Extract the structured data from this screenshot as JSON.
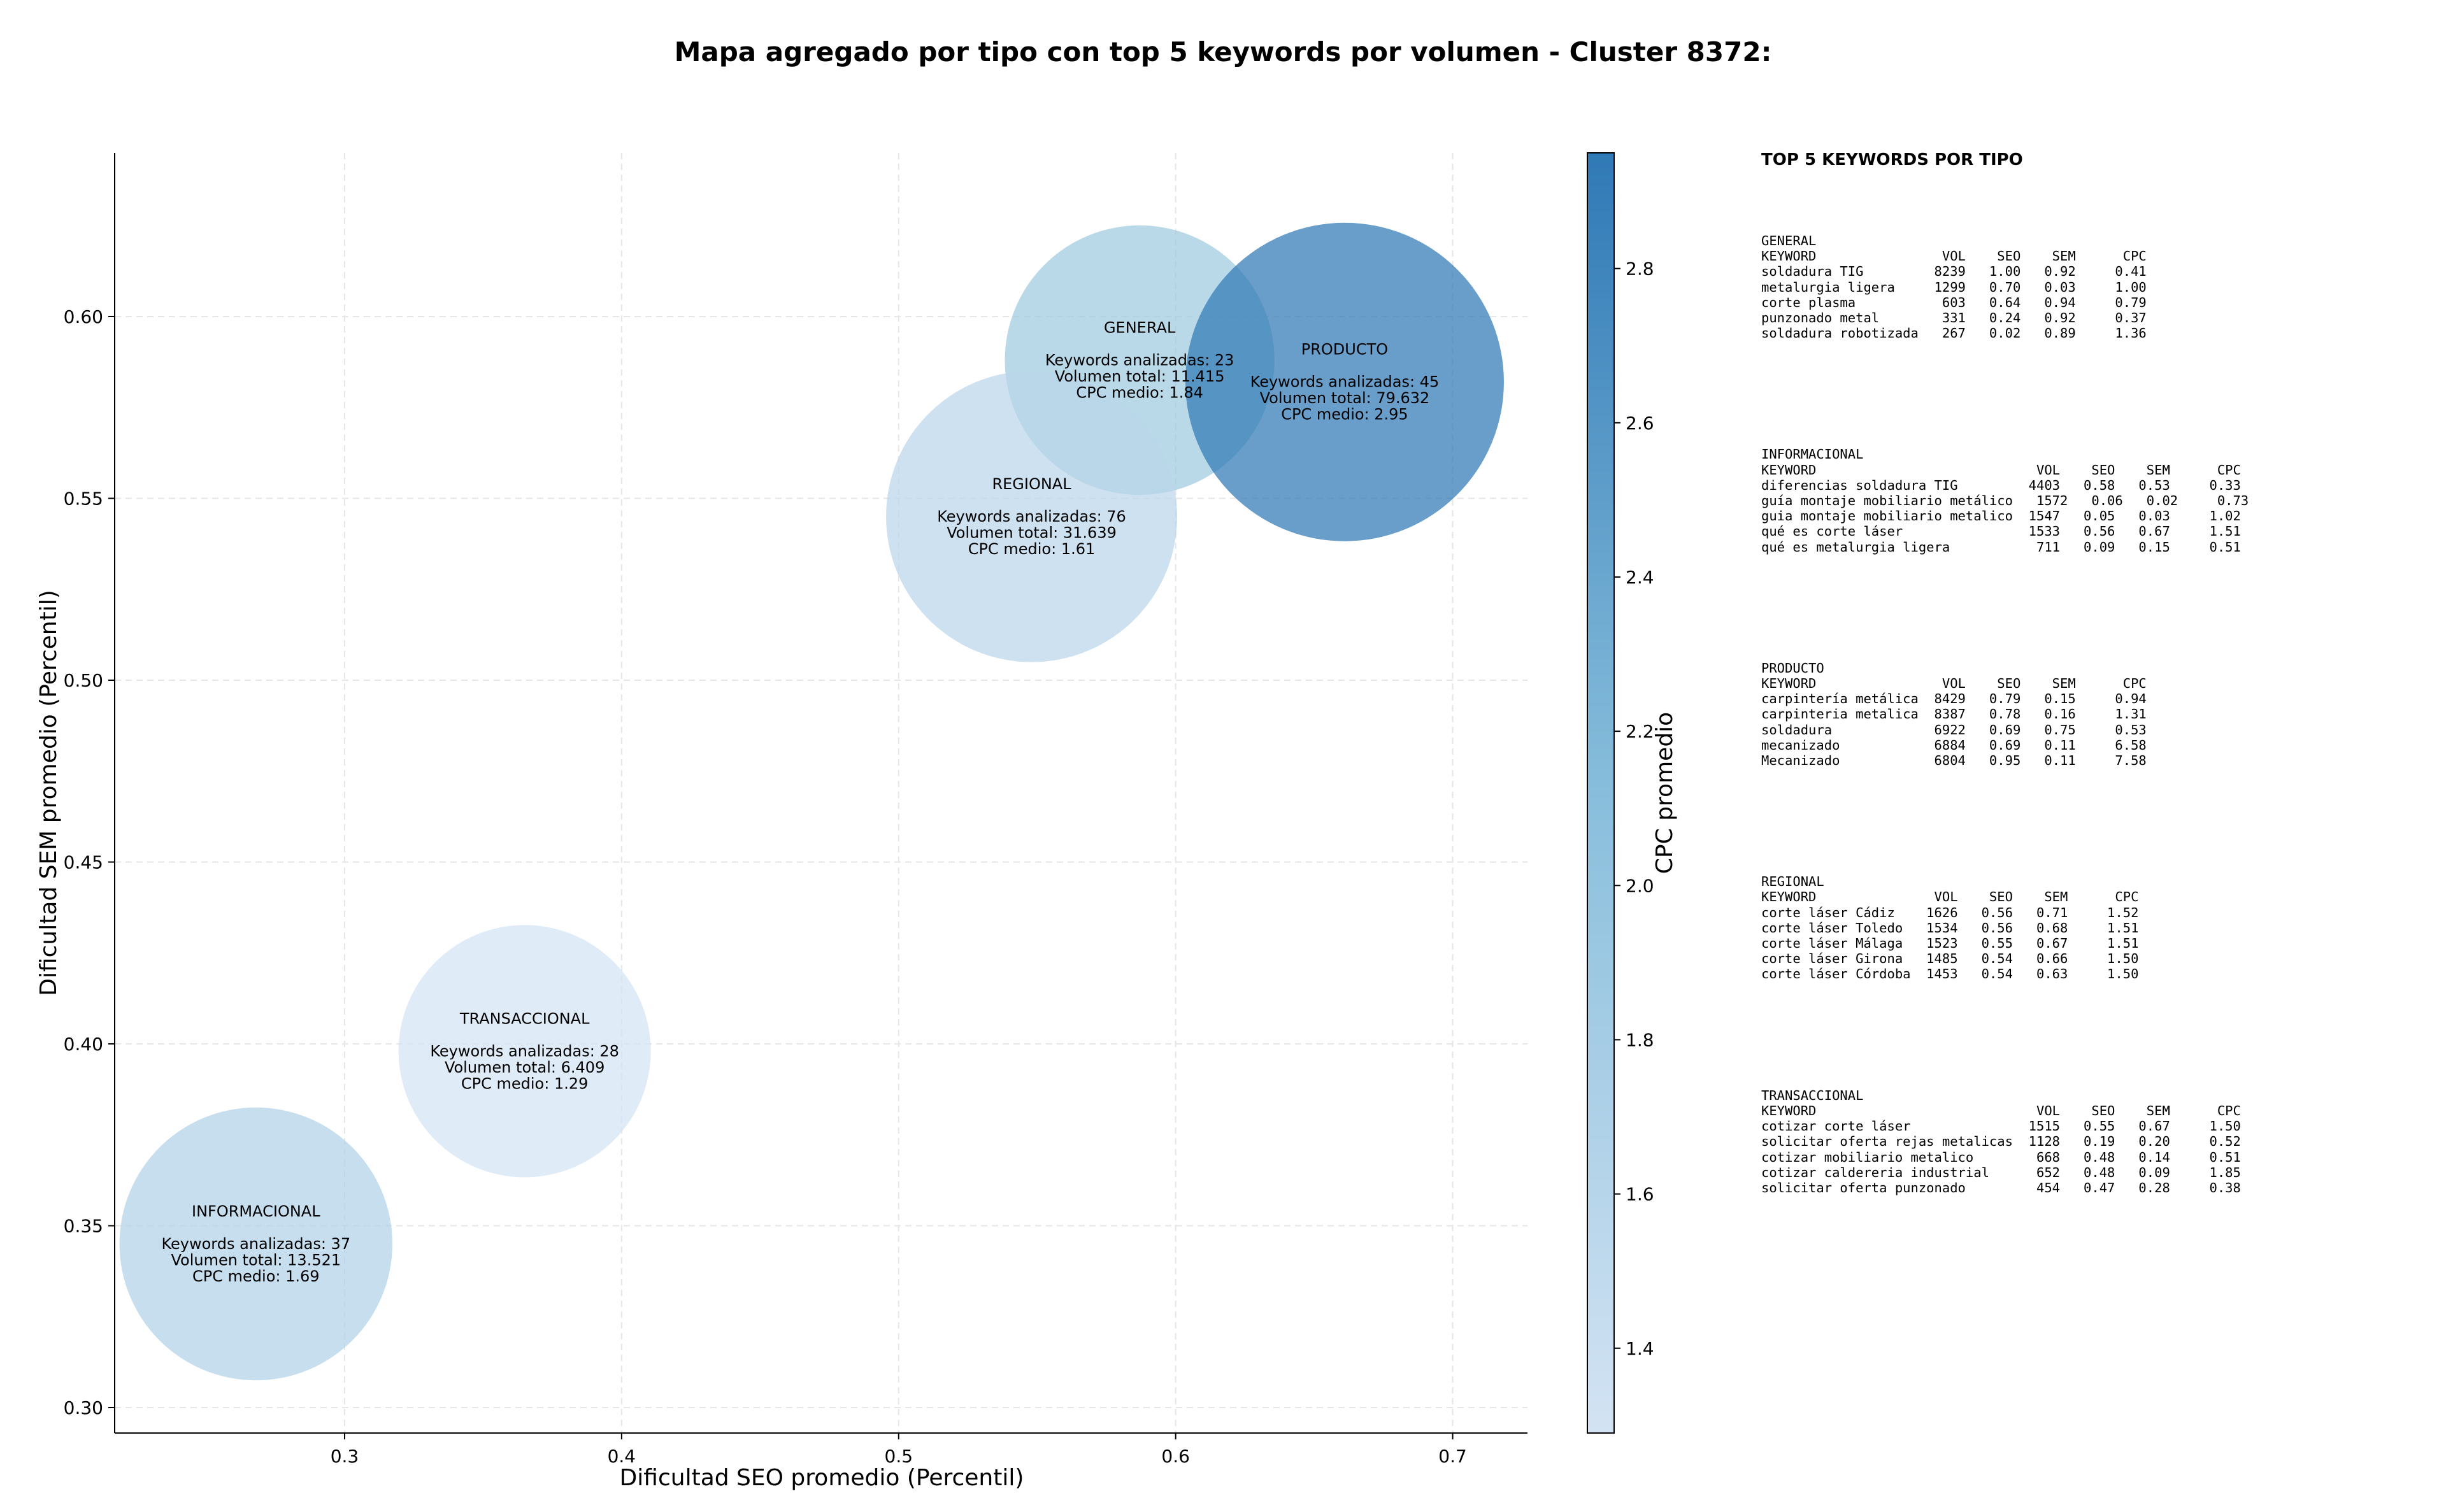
{
  "chart_data": {
    "type": "scatter",
    "variant": "bubble",
    "title": "Mapa agregado por tipo con top 5 keywords por volumen - Cluster 8372:",
    "xlabel": "Dificultad SEO promedio (Percentil)",
    "ylabel": "Dificultad SEM promedio (Percentil)",
    "xlim": [
      0.217,
      0.727
    ],
    "ylim": [
      0.293,
      0.645
    ],
    "xticks": [
      "0.3",
      "0.4",
      "0.5",
      "0.6",
      "0.7"
    ],
    "yticks": [
      "0.30",
      "0.35",
      "0.40",
      "0.45",
      "0.50",
      "0.55",
      "0.60"
    ],
    "grid": true,
    "colorbar": {
      "label": "CPC promedio",
      "range": [
        1.29,
        2.95
      ],
      "ticks": [
        "1.4",
        "1.6",
        "1.8",
        "2.0",
        "2.2",
        "2.4",
        "2.6",
        "2.8"
      ],
      "colormap": "Blues",
      "color_low": "#d3e3f3",
      "color_high": "#2f79b6"
    },
    "bubble_color": "#2f79b6",
    "points": [
      {
        "type": "GENERAL",
        "x": 0.587,
        "y": 0.588,
        "keywords": 23,
        "volume": 11415,
        "cpc": 1.84,
        "lines": [
          "GENERAL",
          "",
          "Keywords analizadas: 23",
          "Volumen total: 11.415",
          "CPC medio: 1.84"
        ],
        "color": "#9ecae1"
      },
      {
        "type": "PRODUCTO",
        "x": 0.661,
        "y": 0.582,
        "keywords": 45,
        "volume": 79632,
        "cpc": 2.95,
        "lines": [
          "PRODUCTO",
          "",
          "Keywords analizadas: 45",
          "Volumen total: 79.632",
          "CPC medio: 2.95"
        ],
        "color": "#2f79b6"
      },
      {
        "type": "REGIONAL",
        "x": 0.548,
        "y": 0.545,
        "keywords": 76,
        "volume": 31639,
        "cpc": 1.61,
        "lines": [
          "REGIONAL",
          "",
          "Keywords analizadas: 76",
          "Volumen total: 31.639",
          "CPC medio: 1.61"
        ],
        "color": "#bad6ea"
      },
      {
        "type": "TRANSACCIONAL",
        "x": 0.365,
        "y": 0.398,
        "keywords": 28,
        "volume": 6409,
        "cpc": 1.29,
        "lines": [
          "TRANSACCIONAL",
          "",
          "Keywords analizadas: 28",
          "Volumen total: 6.409",
          "CPC medio: 1.29"
        ],
        "color": "#d3e3f3"
      },
      {
        "type": "INFORMACIONAL",
        "x": 0.268,
        "y": 0.345,
        "keywords": 37,
        "volume": 13521,
        "cpc": 1.69,
        "lines": [
          "INFORMACIONAL",
          "",
          "Keywords analizadas: 37",
          "Volumen total: 13.521",
          "CPC medio: 1.69"
        ],
        "color": "#b1d1e7"
      }
    ]
  },
  "panel": {
    "title": "TOP 5 KEYWORDS POR TIPO",
    "blocks": [
      {
        "name": "GENERAL",
        "text": "GENERAL\nKEYWORD                VOL    SEO    SEM      CPC\nsoldadura TIG         8239   1.00   0.92     0.41\nmetalurgia ligera     1299   0.70   0.03     1.00\ncorte plasma           603   0.64   0.94     0.79\npunzonado metal        331   0.24   0.92     0.37\nsoldadura robotizada   267   0.02   0.89     1.36"
      },
      {
        "name": "INFORMACIONAL",
        "text": "INFORMACIONAL\nKEYWORD                            VOL    SEO    SEM      CPC\ndiferencias soldadura TIG         4403   0.58   0.53     0.33\nguía montaje mobiliario metálico   1572   0.06   0.02     0.73\nguia montaje mobiliario metalico  1547   0.05   0.03     1.02\nqué es corte láser                1533   0.56   0.67     1.51\nqué es metalurgia ligera           711   0.09   0.15     0.51"
      },
      {
        "name": "PRODUCTO",
        "text": "PRODUCTO\nKEYWORD                VOL    SEO    SEM      CPC\ncarpintería metálica  8429   0.79   0.15     0.94\ncarpinteria metalica  8387   0.78   0.16     1.31\nsoldadura             6922   0.69   0.75     0.53\nmecanizado            6884   0.69   0.11     6.58\nMecanizado            6804   0.95   0.11     7.58"
      },
      {
        "name": "REGIONAL",
        "text": "REGIONAL\nKEYWORD               VOL    SEO    SEM      CPC\ncorte láser Cádiz    1626   0.56   0.71     1.52\ncorte láser Toledo   1534   0.56   0.68     1.51\ncorte láser Málaga   1523   0.55   0.67     1.51\ncorte láser Girona   1485   0.54   0.66     1.50\ncorte láser Córdoba  1453   0.54   0.63     1.50"
      },
      {
        "name": "TRANSACCIONAL",
        "text": "TRANSACCIONAL\nKEYWORD                            VOL    SEO    SEM      CPC\ncotizar corte láser               1515   0.55   0.67     1.50\nsolicitar oferta rejas metalicas  1128   0.19   0.20     0.52\ncotizar mobiliario metalico        668   0.48   0.14     0.51\ncotizar caldereria industrial      652   0.48   0.09     1.85\nsolicitar oferta punzonado         454   0.47   0.28     0.38"
      }
    ]
  }
}
